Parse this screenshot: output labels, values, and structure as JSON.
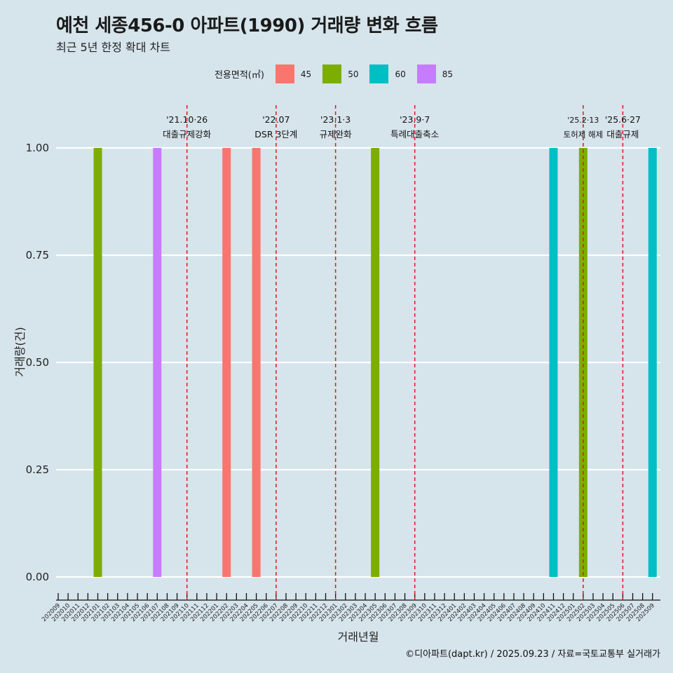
{
  "title": "예천 세종456-0 아파트(1990) 거래량 변화 흐름",
  "subtitle": "최근 5년 한정 확대 차트",
  "caption": "©디아파트(dapt.kr) / 2025.09.23 / 자료=국토교통부 실거래가",
  "legend": {
    "title": "전용면적(㎡)",
    "items": [
      {
        "label": "45",
        "color": "#F8766D"
      },
      {
        "label": "50",
        "color": "#7CAE00"
      },
      {
        "label": "60",
        "color": "#00BFC4"
      },
      {
        "label": "85",
        "color": "#C77CFF"
      }
    ]
  },
  "chart_data": {
    "type": "bar",
    "xlabel": "거래년월",
    "ylabel": "거래량(건)",
    "ylim": [
      0,
      1
    ],
    "yticks": [
      "0.00",
      "0.25",
      "0.50",
      "0.75",
      "1.00"
    ],
    "grid": true,
    "legend_position": "top",
    "categories": [
      "202009",
      "202010",
      "202011",
      "202012",
      "202101",
      "202102",
      "202103",
      "202104",
      "202105",
      "202106",
      "202107",
      "202108",
      "202109",
      "202110",
      "202111",
      "202112",
      "202201",
      "202202",
      "202203",
      "202204",
      "202205",
      "202206",
      "202207",
      "202208",
      "202209",
      "202210",
      "202211",
      "202212",
      "202301",
      "202302",
      "202303",
      "202304",
      "202305",
      "202306",
      "202307",
      "202308",
      "202309",
      "202310",
      "202311",
      "202312",
      "202401",
      "202402",
      "202403",
      "202404",
      "202405",
      "202406",
      "202407",
      "202408",
      "202409",
      "202410",
      "202411",
      "202412",
      "202501",
      "202502",
      "202503",
      "202504",
      "202505",
      "202506",
      "202507",
      "202508",
      "202509"
    ],
    "bars": [
      {
        "month": "202101",
        "area": "50",
        "value": 1
      },
      {
        "month": "202107",
        "area": "85",
        "value": 1
      },
      {
        "month": "202202",
        "area": "45",
        "value": 1
      },
      {
        "month": "202205",
        "area": "45",
        "value": 1
      },
      {
        "month": "202305",
        "area": "50",
        "value": 1
      },
      {
        "month": "202411",
        "area": "60",
        "value": 1
      },
      {
        "month": "202502",
        "area": "50",
        "value": 1
      },
      {
        "month": "202509",
        "area": "60",
        "value": 1
      }
    ],
    "events": [
      {
        "date": "'21.10·26",
        "label": "대출규제강화",
        "month_index": 13.0
      },
      {
        "date": "'22.07",
        "label": "DSR 3단계",
        "month_index": 22.0
      },
      {
        "date": "'23.1·3",
        "label": "규제완화",
        "month_index": 28.0
      },
      {
        "date": "'23.9·7",
        "label": "특례대출축소",
        "month_index": 36.0
      },
      {
        "date": "'25.2·13",
        "label": "토허제 해제",
        "month_index": 53.0
      },
      {
        "date": "'25.6·27",
        "label": "대출규제",
        "month_index": 57.0
      }
    ]
  }
}
